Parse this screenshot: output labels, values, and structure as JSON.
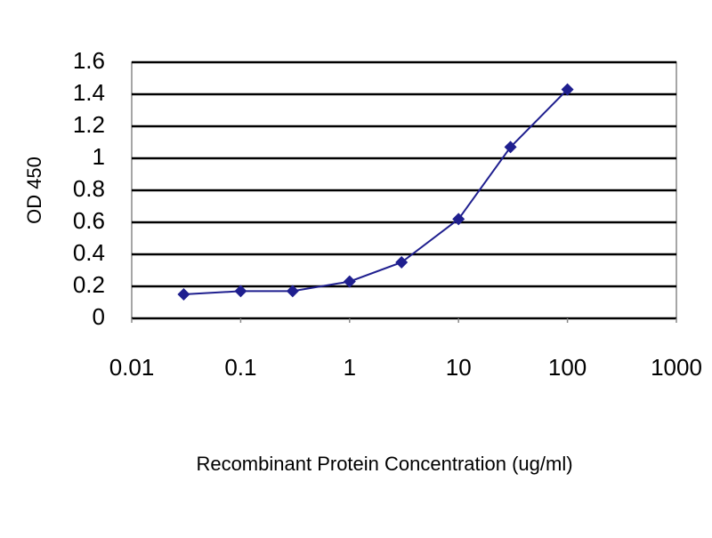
{
  "chart_data": {
    "type": "line",
    "xlabel": "Recombinant Protein Concentration (ug/ml)",
    "ylabel": "OD 450",
    "x": [
      0.03,
      0.1,
      0.3,
      1,
      3,
      10,
      30,
      100
    ],
    "series": [
      {
        "color": "#1f1f8f",
        "values": [
          0.15,
          0.17,
          0.17,
          0.23,
          0.35,
          0.62,
          1.07,
          1.43
        ]
      }
    ],
    "xscale": "log",
    "xlim": [
      0.01,
      1000
    ],
    "xticks": [
      0.01,
      0.1,
      1,
      10,
      100,
      1000
    ],
    "ylim": [
      0,
      1.6
    ],
    "yticks": [
      0,
      0.2,
      0.4,
      0.6,
      0.8,
      1,
      1.2,
      1.4,
      1.6
    ],
    "grid": true
  }
}
